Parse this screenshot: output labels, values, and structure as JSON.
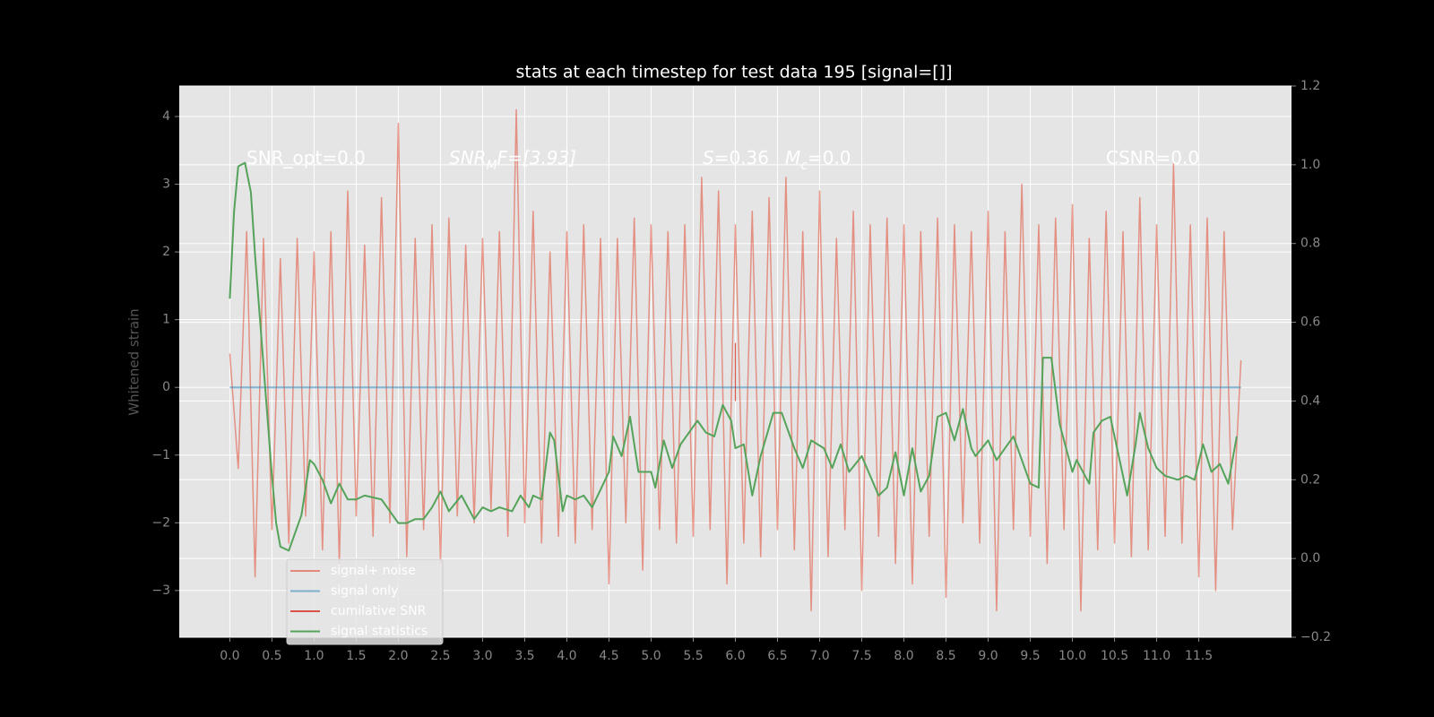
{
  "chart_data": {
    "type": "line",
    "title": "stats at each timestep for test data 195 [signal=[]]",
    "y_label": "Whitened strain",
    "xlim": [
      -0.6,
      12.6
    ],
    "ylim": [
      -3.69,
      4.45
    ],
    "y2lim": [
      -0.2,
      1.2
    ],
    "xticks": [
      {
        "value": 0,
        "label": "0.0"
      },
      0.5,
      {
        "value": 1,
        "label": "1.0"
      },
      1.5,
      {
        "value": 2,
        "label": "2.0"
      },
      2.5,
      {
        "value": 3,
        "label": "3.0"
      },
      3.5,
      {
        "value": 4,
        "label": "4.0"
      },
      4.5,
      {
        "value": 5,
        "label": "5.0"
      },
      5.5,
      {
        "value": 6,
        "label": "6.0"
      },
      6.5,
      {
        "value": 7,
        "label": "7.0"
      },
      7.5,
      {
        "value": 8,
        "label": "8.0"
      },
      8.5,
      {
        "value": 9,
        "label": "9.0"
      },
      9.5,
      {
        "value": 10,
        "label": "10.0"
      },
      10.5,
      {
        "value": 11,
        "label": "11.0"
      },
      11.5
    ],
    "yticks": [
      {
        "value": -3,
        "label": "−3"
      },
      {
        "value": -2,
        "label": "−2"
      },
      {
        "value": -1,
        "label": "−1"
      },
      0,
      1,
      2,
      3,
      4
    ],
    "y2ticks": [
      {
        "value": -0.2,
        "label": "−0.2"
      },
      {
        "value": 0,
        "label": "0.0"
      },
      0.2,
      0.4,
      0.6,
      0.8,
      {
        "value": 1,
        "label": "1.0"
      },
      1.2
    ],
    "grid": true,
    "legend": "lower left",
    "annotations": [
      {
        "parts": [
          {
            "text": "SNR_opt=0.0",
            "style": "normal"
          }
        ]
      },
      {
        "parts": [
          {
            "text": "SNR",
            "style": "italic"
          },
          {
            "text": "M",
            "style": "sub"
          },
          {
            "text": "F=[3.93]",
            "style": "italic"
          }
        ]
      },
      {
        "parts": [
          {
            "text": "S",
            "style": "italic"
          },
          {
            "text": "=0.36",
            "style": "normal"
          }
        ]
      },
      {
        "parts": [
          {
            "text": "M",
            "style": "italic"
          },
          {
            "text": "c",
            "style": "sub"
          },
          {
            "text": "=0.0",
            "style": "normal"
          }
        ]
      },
      {
        "parts": [
          {
            "text": "CSNR=0.0",
            "style": "normal"
          }
        ]
      }
    ],
    "series": [
      {
        "name": "signal+ noise",
        "color": "#e24a33",
        "x": [
          0.0,
          0.1,
          0.2,
          0.3,
          0.4,
          0.5,
          0.6,
          0.7,
          0.8,
          0.9,
          1.0,
          1.1,
          1.2,
          1.3,
          1.4,
          1.5,
          1.6,
          1.7,
          1.8,
          1.9,
          2.0,
          2.1,
          2.2,
          2.3,
          2.4,
          2.5,
          2.6,
          2.7,
          2.8,
          2.9,
          3.0,
          3.1,
          3.2,
          3.3,
          3.4,
          3.5,
          3.6,
          3.7,
          3.8,
          3.9,
          4.0,
          4.1,
          4.2,
          4.3,
          4.4,
          4.5,
          4.6,
          4.7,
          4.8,
          4.9,
          5.0,
          5.1,
          5.2,
          5.3,
          5.4,
          5.5,
          5.6,
          5.7,
          5.8,
          5.9,
          6.0,
          6.1,
          6.2,
          6.3,
          6.4,
          6.5,
          6.6,
          6.7,
          6.8,
          6.9,
          7.0,
          7.1,
          7.2,
          7.3,
          7.4,
          7.5,
          7.6,
          7.7,
          7.8,
          7.9,
          8.0,
          8.1,
          8.2,
          8.3,
          8.4,
          8.5,
          8.6,
          8.7,
          8.8,
          8.9,
          9.0,
          9.1,
          9.2,
          9.3,
          9.4,
          9.5,
          9.6,
          9.7,
          9.8,
          9.9,
          10.0,
          10.1,
          10.2,
          10.3,
          10.4,
          10.5,
          10.6,
          10.7,
          10.8,
          10.9,
          11.0,
          11.1,
          11.2,
          11.3,
          11.4,
          11.5,
          11.6,
          11.7,
          11.8,
          11.9,
          12.0
        ],
        "values": [
          0.5,
          -1.2,
          2.3,
          -2.8,
          2.2,
          -2.1,
          1.9,
          -2.3,
          2.2,
          -1.9,
          2.0,
          -2.4,
          2.3,
          -2.6,
          2.9,
          -1.9,
          2.1,
          -2.2,
          2.8,
          -2.0,
          3.9,
          -2.5,
          2.2,
          -2.1,
          2.4,
          -2.6,
          2.5,
          -1.9,
          2.1,
          -2.0,
          2.2,
          -1.8,
          2.3,
          -2.2,
          4.1,
          -2.0,
          2.6,
          -2.3,
          2.0,
          -2.2,
          2.3,
          -2.3,
          2.4,
          -2.1,
          2.2,
          -2.9,
          2.2,
          -2.0,
          2.5,
          -2.7,
          2.4,
          -2.1,
          2.3,
          -2.3,
          2.4,
          -2.2,
          3.1,
          -2.1,
          2.9,
          -2.9,
          2.4,
          -2.3,
          2.6,
          -2.5,
          2.8,
          -2.1,
          3.1,
          -2.4,
          2.3,
          -3.3,
          2.9,
          -2.5,
          2.2,
          -2.1,
          2.6,
          -3.0,
          2.4,
          -2.2,
          2.5,
          -2.6,
          2.4,
          -2.9,
          2.3,
          -2.2,
          2.5,
          -3.1,
          2.4,
          -2.0,
          2.3,
          -2.3,
          2.6,
          -3.3,
          2.3,
          -2.1,
          3.0,
          -2.2,
          2.4,
          -2.6,
          2.5,
          -2.1,
          2.7,
          -3.3,
          2.2,
          -2.4,
          2.6,
          -2.3,
          2.3,
          -2.5,
          2.8,
          -2.4,
          2.4,
          -2.2,
          3.3,
          -2.3,
          2.4,
          -2.8,
          2.5,
          -3.0,
          2.3,
          -2.1,
          0.4
        ]
      },
      {
        "name": "signal only",
        "color": "#348abd",
        "x": [
          0,
          12
        ],
        "values": [
          0,
          0
        ]
      },
      {
        "name": "cumilative SNR",
        "color": "#d62d20",
        "x": [
          6.0,
          6.0,
          6.0
        ],
        "values": [
          0,
          0.65,
          -0.2
        ]
      },
      {
        "name": "signal statistics",
        "color": "#55a35a",
        "axis": "y2",
        "x": [
          0.0,
          0.05,
          0.1,
          0.18,
          0.25,
          0.3,
          0.4,
          0.5,
          0.55,
          0.6,
          0.7,
          0.75,
          0.85,
          0.95,
          1.0,
          1.1,
          1.2,
          1.3,
          1.4,
          1.5,
          1.6,
          1.8,
          1.9,
          2.0,
          2.1,
          2.2,
          2.3,
          2.4,
          2.5,
          2.6,
          2.75,
          2.9,
          3.0,
          3.1,
          3.2,
          3.35,
          3.45,
          3.55,
          3.6,
          3.7,
          3.8,
          3.85,
          3.95,
          4.0,
          4.1,
          4.2,
          4.3,
          4.5,
          4.55,
          4.65,
          4.75,
          4.85,
          5.0,
          5.05,
          5.15,
          5.25,
          5.35,
          5.45,
          5.55,
          5.65,
          5.75,
          5.85,
          5.95,
          6.0,
          6.1,
          6.2,
          6.3,
          6.45,
          6.55,
          6.7,
          6.8,
          6.9,
          7.05,
          7.15,
          7.25,
          7.35,
          7.5,
          7.7,
          7.8,
          7.9,
          8.0,
          8.1,
          8.2,
          8.3,
          8.4,
          8.5,
          8.6,
          8.7,
          8.8,
          8.85,
          9.0,
          9.1,
          9.3,
          9.5,
          9.6,
          9.65,
          9.75,
          9.85,
          10.0,
          10.05,
          10.2,
          10.25,
          10.35,
          10.45,
          10.55,
          10.65,
          10.75,
          10.8,
          10.9,
          11.0,
          11.1,
          11.25,
          11.35,
          11.45,
          11.55,
          11.65,
          11.75,
          11.85,
          11.95
        ],
        "values": [
          0.66,
          0.88,
          0.996,
          1.005,
          0.93,
          0.77,
          0.49,
          0.21,
          0.09,
          0.03,
          0.02,
          0.05,
          0.11,
          0.25,
          0.24,
          0.2,
          0.14,
          0.19,
          0.15,
          0.15,
          0.16,
          0.15,
          0.12,
          0.09,
          0.09,
          0.1,
          0.1,
          0.13,
          0.17,
          0.12,
          0.16,
          0.1,
          0.13,
          0.12,
          0.13,
          0.12,
          0.16,
          0.13,
          0.16,
          0.15,
          0.32,
          0.3,
          0.12,
          0.16,
          0.15,
          0.16,
          0.13,
          0.22,
          0.31,
          0.26,
          0.36,
          0.22,
          0.22,
          0.18,
          0.3,
          0.23,
          0.29,
          0.32,
          0.35,
          0.32,
          0.31,
          0.39,
          0.35,
          0.28,
          0.29,
          0.16,
          0.26,
          0.37,
          0.37,
          0.28,
          0.23,
          0.3,
          0.28,
          0.23,
          0.29,
          0.22,
          0.26,
          0.16,
          0.18,
          0.27,
          0.16,
          0.28,
          0.17,
          0.21,
          0.36,
          0.37,
          0.3,
          0.38,
          0.28,
          0.26,
          0.3,
          0.25,
          0.31,
          0.19,
          0.18,
          0.51,
          0.51,
          0.34,
          0.22,
          0.25,
          0.19,
          0.32,
          0.35,
          0.36,
          0.26,
          0.16,
          0.29,
          0.37,
          0.28,
          0.23,
          0.21,
          0.2,
          0.21,
          0.2,
          0.29,
          0.22,
          0.24,
          0.19,
          0.31
        ]
      }
    ]
  }
}
